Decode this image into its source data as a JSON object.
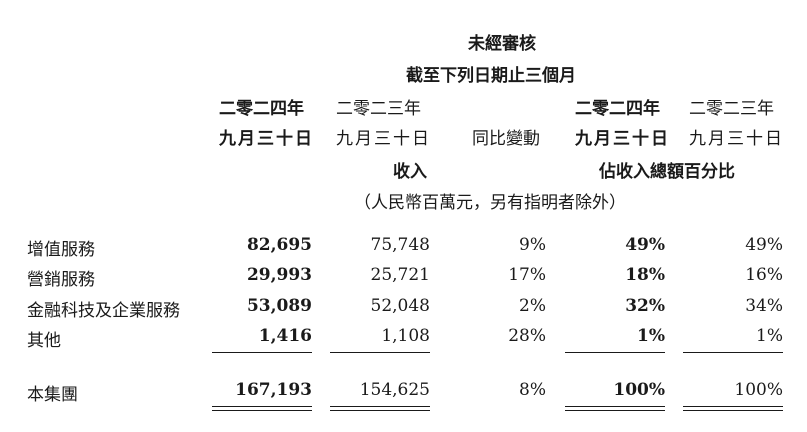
{
  "header": {
    "unaudited": "未經審核",
    "period": "截至下列日期止三個月",
    "cols": [
      {
        "year": "二零二四年",
        "date": "九月三十日"
      },
      {
        "year": "二零二三年",
        "date": "九月三十日"
      },
      {
        "change": "同比變動"
      },
      {
        "year": "二零二四年",
        "date": "九月三十日"
      },
      {
        "year": "二零二三年",
        "date": "九月三十日"
      }
    ],
    "revenue_label": "收入",
    "pct_label": "佔收入總額百分比",
    "unit_note": "（人民幣百萬元，另有指明者除外）"
  },
  "rows": [
    {
      "label": "增值服務",
      "v2024": "82,695",
      "v2023": "75,748",
      "yoy": "9%",
      "p2024": "49%",
      "p2023": "49%"
    },
    {
      "label": "營銷服務",
      "v2024": "29,993",
      "v2023": "25,721",
      "yoy": "17%",
      "p2024": "18%",
      "p2023": "16%"
    },
    {
      "label": "金融科技及企業服務",
      "v2024": "53,089",
      "v2023": "52,048",
      "yoy": "2%",
      "p2024": "32%",
      "p2023": "34%"
    },
    {
      "label": "其他",
      "v2024": "1,416",
      "v2023": "1,108",
      "yoy": "28%",
      "p2024": "1%",
      "p2023": "1%"
    }
  ],
  "total": {
    "label": "本集團",
    "v2024": "167,193",
    "v2023": "154,625",
    "yoy": "8%",
    "p2024": "100%",
    "p2023": "100%"
  }
}
